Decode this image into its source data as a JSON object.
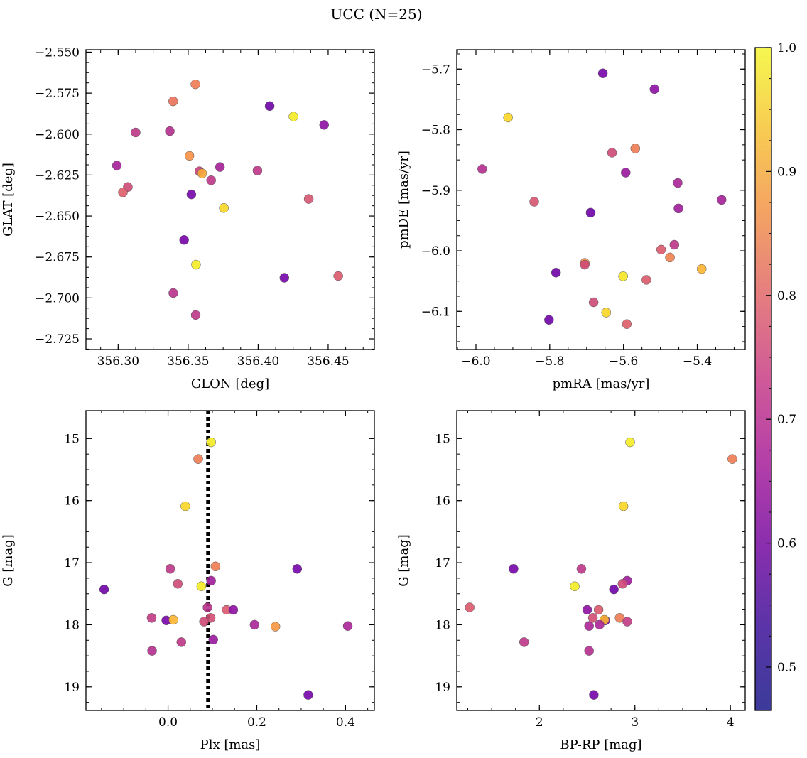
{
  "figure": {
    "title": "UCC (N=25)"
  },
  "colorbar": {
    "vmin": 0.465,
    "vmax": 1.0,
    "ticks": [
      0.5,
      0.6,
      0.7,
      0.8,
      0.9,
      1.0
    ],
    "tick_labels": [
      "0.5",
      "0.6",
      "0.7",
      "0.8",
      "0.9",
      "1.0"
    ],
    "colormap": "plasma"
  },
  "chart_data": [
    {
      "id": "glon-glat",
      "type": "scatter",
      "title": "",
      "xlabel": "GLON [deg]",
      "ylabel": "GLAT [deg]",
      "xlim": [
        356.277,
        356.483
      ],
      "ylim": [
        -2.7315,
        -2.5485
      ],
      "xticks": [
        356.3,
        356.35,
        356.4,
        356.45
      ],
      "xtick_labels": [
        "356.30",
        "356.35",
        "356.40",
        "356.45"
      ],
      "yticks": [
        -2.725,
        -2.7,
        -2.675,
        -2.65,
        -2.625,
        -2.6,
        -2.575,
        -2.55
      ],
      "ytick_labels": [
        "−2.725",
        "−2.700",
        "−2.675",
        "−2.650",
        "−2.625",
        "−2.600",
        "−2.575",
        "−2.550"
      ],
      "points": [
        {
          "x": 356.3552,
          "y": -2.5696,
          "c": 0.8
        },
        {
          "x": 356.3393,
          "y": -2.58,
          "c": 0.78
        },
        {
          "x": 356.4082,
          "y": -2.5829,
          "c": 0.52
        },
        {
          "x": 356.4252,
          "y": -2.5893,
          "c": 0.98
        },
        {
          "x": 356.4471,
          "y": -2.5944,
          "c": 0.57
        },
        {
          "x": 356.3125,
          "y": -2.599,
          "c": 0.66
        },
        {
          "x": 356.3369,
          "y": -2.5982,
          "c": 0.64
        },
        {
          "x": 356.3509,
          "y": -2.6133,
          "c": 0.84
        },
        {
          "x": 356.2991,
          "y": -2.6192,
          "c": 0.61
        },
        {
          "x": 356.3727,
          "y": -2.6201,
          "c": 0.61
        },
        {
          "x": 356.3995,
          "y": -2.6223,
          "c": 0.66
        },
        {
          "x": 356.358,
          "y": -2.6227,
          "c": 0.68
        },
        {
          "x": 356.36,
          "y": -2.624,
          "c": 0.88
        },
        {
          "x": 356.3664,
          "y": -2.6282,
          "c": 0.66
        },
        {
          "x": 356.3069,
          "y": -2.6323,
          "c": 0.7
        },
        {
          "x": 356.3034,
          "y": -2.6356,
          "c": 0.74
        },
        {
          "x": 356.3523,
          "y": -2.6368,
          "c": 0.53
        },
        {
          "x": 356.4361,
          "y": -2.6396,
          "c": 0.72
        },
        {
          "x": 356.3755,
          "y": -2.6451,
          "c": 0.95
        },
        {
          "x": 356.3471,
          "y": -2.6646,
          "c": 0.53
        },
        {
          "x": 356.3556,
          "y": -2.6797,
          "c": 0.98
        },
        {
          "x": 356.4187,
          "y": -2.6877,
          "c": 0.53
        },
        {
          "x": 356.4572,
          "y": -2.6866,
          "c": 0.73
        },
        {
          "x": 356.3394,
          "y": -2.697,
          "c": 0.65
        },
        {
          "x": 356.3554,
          "y": -2.7104,
          "c": 0.66
        }
      ]
    },
    {
      "id": "pmra-pmde",
      "type": "scatter",
      "title": "",
      "xlabel": "pmRA [mas/yr]",
      "ylabel": "pmDE [mas/yr]",
      "xlim": [
        -6.052,
        -5.27
      ],
      "ylim": [
        -6.163,
        -5.668
      ],
      "xticks": [
        -6.0,
        -5.8,
        -5.6,
        -5.4
      ],
      "xtick_labels": [
        "−6.0",
        "−5.8",
        "−5.6",
        "−5.4"
      ],
      "yticks": [
        -6.1,
        -6.0,
        -5.9,
        -5.8,
        -5.7
      ],
      "ytick_labels": [
        "−6.1",
        "−6.0",
        "−5.9",
        "−5.8",
        "−5.7"
      ],
      "points": [
        {
          "x": -5.656,
          "y": -5.707,
          "c": 0.53
        },
        {
          "x": -5.516,
          "y": -5.733,
          "c": 0.57
        },
        {
          "x": -5.913,
          "y": -5.78,
          "c": 0.95
        },
        {
          "x": -5.983,
          "y": -5.865,
          "c": 0.64
        },
        {
          "x": -5.568,
          "y": -5.831,
          "c": 0.8
        },
        {
          "x": -5.631,
          "y": -5.838,
          "c": 0.7
        },
        {
          "x": -5.594,
          "y": -5.871,
          "c": 0.59
        },
        {
          "x": -5.453,
          "y": -5.888,
          "c": 0.62
        },
        {
          "x": -5.842,
          "y": -5.919,
          "c": 0.72
        },
        {
          "x": -5.451,
          "y": -5.93,
          "c": 0.6
        },
        {
          "x": -5.334,
          "y": -5.916,
          "c": 0.61
        },
        {
          "x": -5.689,
          "y": -5.937,
          "c": 0.52
        },
        {
          "x": -5.498,
          "y": -5.998,
          "c": 0.73
        },
        {
          "x": -5.462,
          "y": -5.99,
          "c": 0.66
        },
        {
          "x": -5.474,
          "y": -6.011,
          "c": 0.81
        },
        {
          "x": -5.705,
          "y": -6.02,
          "c": 0.84
        },
        {
          "x": -5.705,
          "y": -6.023,
          "c": 0.7
        },
        {
          "x": -5.388,
          "y": -6.03,
          "c": 0.9
        },
        {
          "x": -5.783,
          "y": -6.036,
          "c": 0.52
        },
        {
          "x": -5.601,
          "y": -6.042,
          "c": 0.97
        },
        {
          "x": -5.538,
          "y": -6.048,
          "c": 0.73
        },
        {
          "x": -5.681,
          "y": -6.085,
          "c": 0.7
        },
        {
          "x": -5.647,
          "y": -6.102,
          "c": 0.95
        },
        {
          "x": -5.802,
          "y": -6.114,
          "c": 0.52
        },
        {
          "x": -5.591,
          "y": -6.121,
          "c": 0.74
        }
      ]
    },
    {
      "id": "plx-g",
      "type": "scatter",
      "title": "",
      "xlabel": "Plx [mas]",
      "ylabel": "G [mag]",
      "xlim": [
        -0.185,
        0.465
      ],
      "ylim": [
        19.38,
        14.55
      ],
      "xticks": [
        0.0,
        0.2,
        0.4
      ],
      "xtick_labels": [
        "0.0",
        "0.2",
        "0.4"
      ],
      "yticks": [
        15,
        16,
        17,
        18,
        19
      ],
      "ytick_labels": [
        "15",
        "16",
        "17",
        "18",
        "19"
      ],
      "vline": 0.09,
      "points": [
        {
          "x": 0.097,
          "y": 15.06,
          "c": 0.98
        },
        {
          "x": 0.068,
          "y": 15.33,
          "c": 0.8
        },
        {
          "x": 0.039,
          "y": 16.09,
          "c": 0.95
        },
        {
          "x": 0.107,
          "y": 17.06,
          "c": 0.8
        },
        {
          "x": 0.291,
          "y": 17.1,
          "c": 0.53
        },
        {
          "x": 0.005,
          "y": 17.1,
          "c": 0.66
        },
        {
          "x": 0.022,
          "y": 17.34,
          "c": 0.7
        },
        {
          "x": 0.097,
          "y": 17.29,
          "c": 0.6
        },
        {
          "x": 0.075,
          "y": 17.38,
          "c": 0.98
        },
        {
          "x": -0.144,
          "y": 17.43,
          "c": 0.52
        },
        {
          "x": 0.089,
          "y": 17.72,
          "c": 0.65
        },
        {
          "x": 0.132,
          "y": 17.76,
          "c": 0.73
        },
        {
          "x": 0.147,
          "y": 17.76,
          "c": 0.57
        },
        {
          "x": 0.096,
          "y": 17.89,
          "c": 0.71
        },
        {
          "x": -0.037,
          "y": 17.89,
          "c": 0.67
        },
        {
          "x": -0.004,
          "y": 17.93,
          "c": 0.53
        },
        {
          "x": 0.012,
          "y": 17.92,
          "c": 0.9
        },
        {
          "x": 0.081,
          "y": 17.95,
          "c": 0.7
        },
        {
          "x": 0.195,
          "y": 18.0,
          "c": 0.62
        },
        {
          "x": 0.242,
          "y": 18.03,
          "c": 0.85
        },
        {
          "x": 0.405,
          "y": 18.02,
          "c": 0.62
        },
        {
          "x": 0.102,
          "y": 18.24,
          "c": 0.59
        },
        {
          "x": 0.03,
          "y": 18.28,
          "c": 0.66
        },
        {
          "x": -0.036,
          "y": 18.42,
          "c": 0.64
        },
        {
          "x": 0.316,
          "y": 19.13,
          "c": 0.53
        }
      ]
    },
    {
      "id": "bprp-g",
      "type": "scatter",
      "title": "",
      "xlabel": "BP-RP [mag]",
      "ylabel": "G [mag]",
      "xlim": [
        1.135,
        4.155
      ],
      "ylim": [
        19.38,
        14.55
      ],
      "xticks": [
        2,
        3,
        4
      ],
      "xtick_labels": [
        "2",
        "3",
        "4"
      ],
      "yticks": [
        15,
        16,
        17,
        18,
        19
      ],
      "ytick_labels": [
        "15",
        "16",
        "17",
        "18",
        "19"
      ],
      "points": [
        {
          "x": 2.95,
          "y": 15.06,
          "c": 0.98
        },
        {
          "x": 4.02,
          "y": 15.33,
          "c": 0.8
        },
        {
          "x": 2.88,
          "y": 16.09,
          "c": 0.95
        },
        {
          "x": 1.73,
          "y": 17.1,
          "c": 0.53
        },
        {
          "x": 2.44,
          "y": 17.1,
          "c": 0.66
        },
        {
          "x": 2.37,
          "y": 17.38,
          "c": 0.98
        },
        {
          "x": 2.92,
          "y": 17.29,
          "c": 0.6
        },
        {
          "x": 2.87,
          "y": 17.34,
          "c": 0.7
        },
        {
          "x": 2.78,
          "y": 17.43,
          "c": 0.52
        },
        {
          "x": 1.27,
          "y": 17.72,
          "c": 0.73
        },
        {
          "x": 2.5,
          "y": 17.76,
          "c": 0.57
        },
        {
          "x": 2.62,
          "y": 17.76,
          "c": 0.73
        },
        {
          "x": 2.56,
          "y": 17.89,
          "c": 0.71
        },
        {
          "x": 2.84,
          "y": 17.89,
          "c": 0.8
        },
        {
          "x": 2.69,
          "y": 17.93,
          "c": 0.53
        },
        {
          "x": 2.68,
          "y": 17.92,
          "c": 0.9
        },
        {
          "x": 2.92,
          "y": 17.95,
          "c": 0.67
        },
        {
          "x": 2.52,
          "y": 18.02,
          "c": 0.62
        },
        {
          "x": 2.63,
          "y": 18.0,
          "c": 0.62
        },
        {
          "x": 1.84,
          "y": 18.28,
          "c": 0.66
        },
        {
          "x": 2.52,
          "y": 18.42,
          "c": 0.64
        },
        {
          "x": 2.57,
          "y": 19.13,
          "c": 0.53
        }
      ]
    }
  ]
}
